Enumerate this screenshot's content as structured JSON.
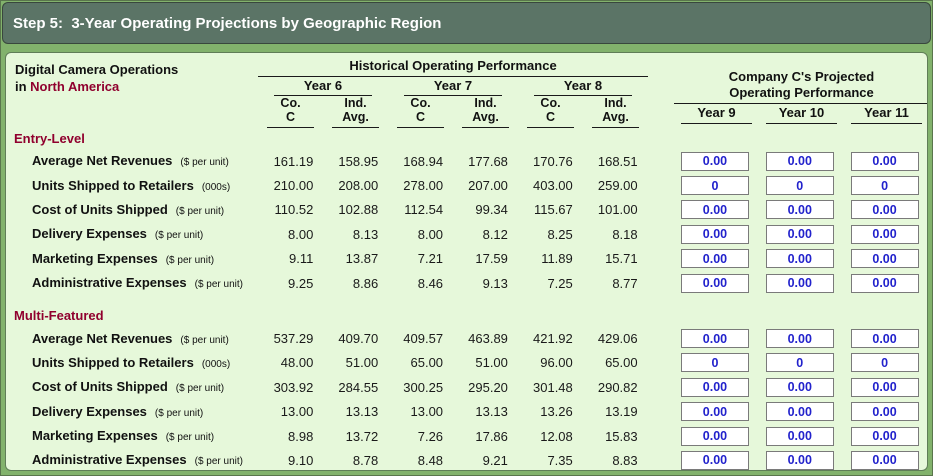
{
  "window": {
    "title": "Step 5:  3-Year Operating Projections by Geographic Region"
  },
  "header": {
    "operations_title": "Digital Camera Operations",
    "region_prefix": "in ",
    "region": "North America",
    "historical_title": "Historical Operating Performance",
    "projected_title_line1": "Company C's Projected",
    "projected_title_line2": "Operating Performance",
    "year_groups": [
      "Year 6",
      "Year 7",
      "Year 8"
    ],
    "subcol_co_line1": "Co.",
    "subcol_co_line2": "C",
    "subcol_ind_line1": "Ind.",
    "subcol_ind_line2": "Avg.",
    "projected_years": [
      "Year 9",
      "Year 10",
      "Year 11"
    ]
  },
  "colors": {
    "title_bar_bg": "#5b7466",
    "frame_bg": "#82b26c",
    "panel_bg": "#e6f8da",
    "section_header_text": "#90002e",
    "input_text": "#2222cc"
  },
  "sections": [
    {
      "name": "Entry-Level",
      "rows": [
        {
          "label": "Average Net Revenues",
          "unit": "($ per unit)",
          "values": [
            "161.19",
            "158.95",
            "168.94",
            "177.68",
            "170.76",
            "168.51"
          ],
          "inputs": [
            "0.00",
            "0.00",
            "0.00"
          ]
        },
        {
          "label": "Units Shipped to Retailers",
          "unit": "(000s)",
          "values": [
            "210.00",
            "208.00",
            "278.00",
            "207.00",
            "403.00",
            "259.00"
          ],
          "inputs": [
            "0",
            "0",
            "0"
          ]
        },
        {
          "label": "Cost of Units Shipped",
          "unit": "($ per unit)",
          "values": [
            "110.52",
            "102.88",
            "112.54",
            "99.34",
            "115.67",
            "101.00"
          ],
          "inputs": [
            "0.00",
            "0.00",
            "0.00"
          ]
        },
        {
          "label": "Delivery Expenses",
          "unit": "($ per unit)",
          "values": [
            "8.00",
            "8.13",
            "8.00",
            "8.12",
            "8.25",
            "8.18"
          ],
          "inputs": [
            "0.00",
            "0.00",
            "0.00"
          ]
        },
        {
          "label": "Marketing Expenses",
          "unit": "($ per unit)",
          "values": [
            "9.11",
            "13.87",
            "7.21",
            "17.59",
            "11.89",
            "15.71"
          ],
          "inputs": [
            "0.00",
            "0.00",
            "0.00"
          ]
        },
        {
          "label": "Administrative Expenses",
          "unit": "($ per unit)",
          "values": [
            "9.25",
            "8.86",
            "8.46",
            "9.13",
            "7.25",
            "8.77"
          ],
          "inputs": [
            "0.00",
            "0.00",
            "0.00"
          ]
        }
      ]
    },
    {
      "name": "Multi-Featured",
      "rows": [
        {
          "label": "Average Net Revenues",
          "unit": "($ per unit)",
          "values": [
            "537.29",
            "409.70",
            "409.57",
            "463.89",
            "421.92",
            "429.06"
          ],
          "inputs": [
            "0.00",
            "0.00",
            "0.00"
          ]
        },
        {
          "label": "Units Shipped to Retailers",
          "unit": "(000s)",
          "values": [
            "48.00",
            "51.00",
            "65.00",
            "51.00",
            "96.00",
            "65.00"
          ],
          "inputs": [
            "0",
            "0",
            "0"
          ]
        },
        {
          "label": "Cost of Units Shipped",
          "unit": "($ per unit)",
          "values": [
            "303.92",
            "284.55",
            "300.25",
            "295.20",
            "301.48",
            "290.82"
          ],
          "inputs": [
            "0.00",
            "0.00",
            "0.00"
          ]
        },
        {
          "label": "Delivery Expenses",
          "unit": "($ per unit)",
          "values": [
            "13.00",
            "13.13",
            "13.00",
            "13.13",
            "13.26",
            "13.19"
          ],
          "inputs": [
            "0.00",
            "0.00",
            "0.00"
          ]
        },
        {
          "label": "Marketing Expenses",
          "unit": "($ per unit)",
          "values": [
            "8.98",
            "13.72",
            "7.26",
            "17.86",
            "12.08",
            "15.83"
          ],
          "inputs": [
            "0.00",
            "0.00",
            "0.00"
          ]
        },
        {
          "label": "Administrative Expenses",
          "unit": "($ per unit)",
          "values": [
            "9.10",
            "8.78",
            "8.48",
            "9.21",
            "7.35",
            "8.83"
          ],
          "inputs": [
            "0.00",
            "0.00",
            "0.00"
          ]
        }
      ]
    }
  ]
}
